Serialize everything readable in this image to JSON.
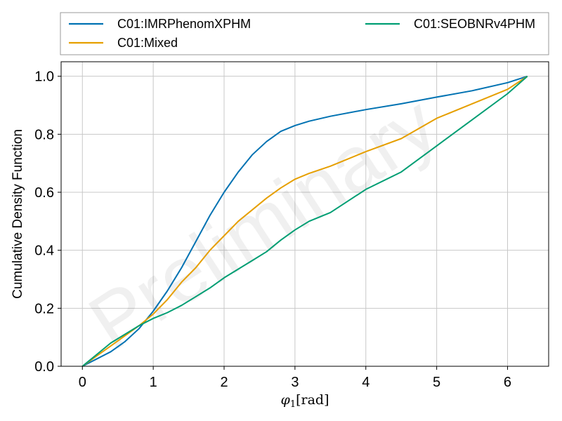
{
  "chart_data": {
    "type": "line",
    "title": "",
    "xlabel_symbol": "φ",
    "xlabel_subscript": "1",
    "xlabel_unit": "[rad]",
    "ylabel": "Cumulative Density Function",
    "xlim": [
      -0.3,
      6.58
    ],
    "ylim": [
      0,
      1.05
    ],
    "xticks": [
      "0",
      "1",
      "2",
      "3",
      "4",
      "5",
      "6"
    ],
    "yticks": [
      "0.0",
      "0.2",
      "0.4",
      "0.6",
      "0.8",
      "1.0"
    ],
    "grid": true,
    "legend_position": "top-outside",
    "watermark": "Preliminary",
    "series": [
      {
        "name": "C01:IMRPhenomXPHM",
        "color": "#0072b2",
        "x": [
          0,
          0.2,
          0.4,
          0.6,
          0.8,
          1.0,
          1.2,
          1.4,
          1.6,
          1.8,
          2.0,
          2.2,
          2.4,
          2.6,
          2.8,
          3.0,
          3.2,
          3.5,
          4.0,
          4.5,
          5.0,
          5.5,
          6.0,
          6.28
        ],
        "y": [
          0,
          0.025,
          0.05,
          0.085,
          0.13,
          0.19,
          0.26,
          0.34,
          0.43,
          0.52,
          0.6,
          0.67,
          0.73,
          0.775,
          0.81,
          0.83,
          0.845,
          0.862,
          0.885,
          0.905,
          0.928,
          0.95,
          0.978,
          1.0
        ]
      },
      {
        "name": "C01:Mixed",
        "color": "#e69f00",
        "x": [
          0,
          0.2,
          0.4,
          0.6,
          0.8,
          1.0,
          1.2,
          1.4,
          1.6,
          1.8,
          2.0,
          2.2,
          2.4,
          2.6,
          2.8,
          3.0,
          3.2,
          3.5,
          4.0,
          4.5,
          5.0,
          5.5,
          6.0,
          6.28
        ],
        "y": [
          0,
          0.035,
          0.07,
          0.105,
          0.14,
          0.18,
          0.23,
          0.29,
          0.34,
          0.4,
          0.45,
          0.5,
          0.54,
          0.58,
          0.615,
          0.645,
          0.665,
          0.69,
          0.74,
          0.785,
          0.855,
          0.905,
          0.955,
          1.0
        ]
      },
      {
        "name": "C01:SEOBNRv4PHM",
        "color": "#009e73",
        "x": [
          0,
          0.2,
          0.4,
          0.6,
          0.8,
          1.0,
          1.2,
          1.4,
          1.6,
          1.8,
          2.0,
          2.2,
          2.4,
          2.6,
          2.8,
          3.0,
          3.2,
          3.5,
          4.0,
          4.5,
          5.0,
          5.5,
          6.0,
          6.28
        ],
        "y": [
          0,
          0.04,
          0.08,
          0.11,
          0.14,
          0.165,
          0.185,
          0.21,
          0.24,
          0.27,
          0.305,
          0.335,
          0.365,
          0.395,
          0.435,
          0.47,
          0.5,
          0.53,
          0.61,
          0.67,
          0.76,
          0.85,
          0.94,
          1.0
        ]
      }
    ]
  }
}
